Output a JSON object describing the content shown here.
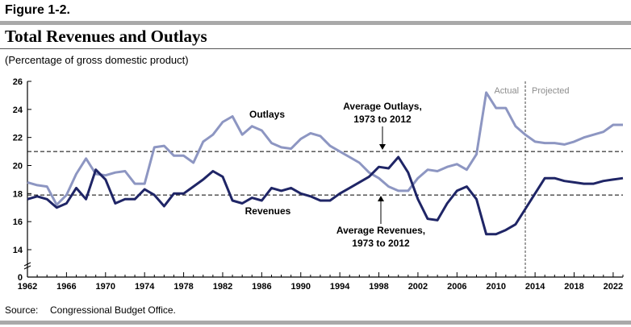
{
  "figure": {
    "label": "Figure 1-2.",
    "title": "Total Revenues and Outlays",
    "subtitle": "(Percentage of gross domestic product)",
    "source_label": "Source:",
    "source_text": "Congressional Budget Office."
  },
  "chart_data": {
    "type": "line",
    "title": "Total Revenues and Outlays",
    "subtitle": "(Percentage of gross domestic product)",
    "xlabel": "",
    "ylabel": "",
    "xlim": [
      1962,
      2023
    ],
    "ylim": [
      0,
      26
    ],
    "y_axis_break": true,
    "yticks": [
      0,
      14,
      16,
      18,
      20,
      22,
      24,
      26
    ],
    "xticks": [
      1962,
      1966,
      1970,
      1974,
      1978,
      1982,
      1986,
      1990,
      1994,
      1998,
      2002,
      2006,
      2010,
      2014,
      2018,
      2022
    ],
    "grid": false,
    "x": [
      1962,
      1963,
      1964,
      1965,
      1966,
      1967,
      1968,
      1969,
      1970,
      1971,
      1972,
      1973,
      1974,
      1975,
      1976,
      1977,
      1978,
      1979,
      1980,
      1981,
      1982,
      1983,
      1984,
      1985,
      1986,
      1987,
      1988,
      1989,
      1990,
      1991,
      1992,
      1993,
      1994,
      1995,
      1996,
      1997,
      1998,
      1999,
      2000,
      2001,
      2002,
      2003,
      2004,
      2005,
      2006,
      2007,
      2008,
      2009,
      2010,
      2011,
      2012,
      2013,
      2014,
      2015,
      2016,
      2017,
      2018,
      2019,
      2020,
      2021,
      2022,
      2023
    ],
    "series": [
      {
        "name": "Outlays",
        "color": "#8d96c2",
        "values": [
          18.8,
          18.6,
          18.5,
          17.2,
          17.9,
          19.4,
          20.5,
          19.4,
          19.3,
          19.5,
          19.6,
          18.7,
          18.7,
          21.3,
          21.4,
          20.7,
          20.7,
          20.2,
          21.7,
          22.2,
          23.1,
          23.5,
          22.2,
          22.8,
          22.5,
          21.6,
          21.3,
          21.2,
          21.9,
          22.3,
          22.1,
          21.4,
          21.0,
          20.6,
          20.2,
          19.5,
          19.1,
          18.5,
          18.2,
          18.2,
          19.1,
          19.7,
          19.6,
          19.9,
          20.1,
          19.7,
          20.8,
          25.2,
          24.1,
          24.1,
          22.8,
          22.2,
          21.7,
          21.6,
          21.6,
          21.5,
          21.7,
          22.0,
          22.2,
          22.4,
          22.9,
          22.9
        ]
      },
      {
        "name": "Revenues",
        "color": "#1f2566",
        "values": [
          17.6,
          17.8,
          17.6,
          17.0,
          17.3,
          18.4,
          17.6,
          19.7,
          19.0,
          17.3,
          17.6,
          17.6,
          18.3,
          17.9,
          17.1,
          18.0,
          18.0,
          18.5,
          19.0,
          19.6,
          19.2,
          17.5,
          17.3,
          17.7,
          17.5,
          18.4,
          18.2,
          18.4,
          18.0,
          17.8,
          17.5,
          17.5,
          18.0,
          18.4,
          18.8,
          19.2,
          19.9,
          19.8,
          20.6,
          19.5,
          17.6,
          16.2,
          16.1,
          17.3,
          18.2,
          18.5,
          17.6,
          15.1,
          15.1,
          15.4,
          15.8,
          16.9,
          18.0,
          19.1,
          19.1,
          18.9,
          18.8,
          18.7,
          18.7,
          18.9,
          19.0,
          19.1
        ]
      }
    ],
    "reference_lines": [
      {
        "label": "Average Outlays, 1973 to 2012",
        "value": 21.0,
        "style": "dashed"
      },
      {
        "label": "Average Revenues, 1973 to 2012",
        "value": 17.9,
        "style": "dashed"
      }
    ],
    "divider": {
      "x": 2013,
      "left_label": "Actual",
      "right_label": "Projected"
    },
    "annotations": {
      "outlays": "Outlays",
      "revenues": "Revenues",
      "avg_outlays_line1": "Average Outlays,",
      "avg_outlays_line2": "1973 to 2012",
      "avg_revenues_line1": "Average Revenues,",
      "avg_revenues_line2": "1973 to 2012"
    }
  }
}
